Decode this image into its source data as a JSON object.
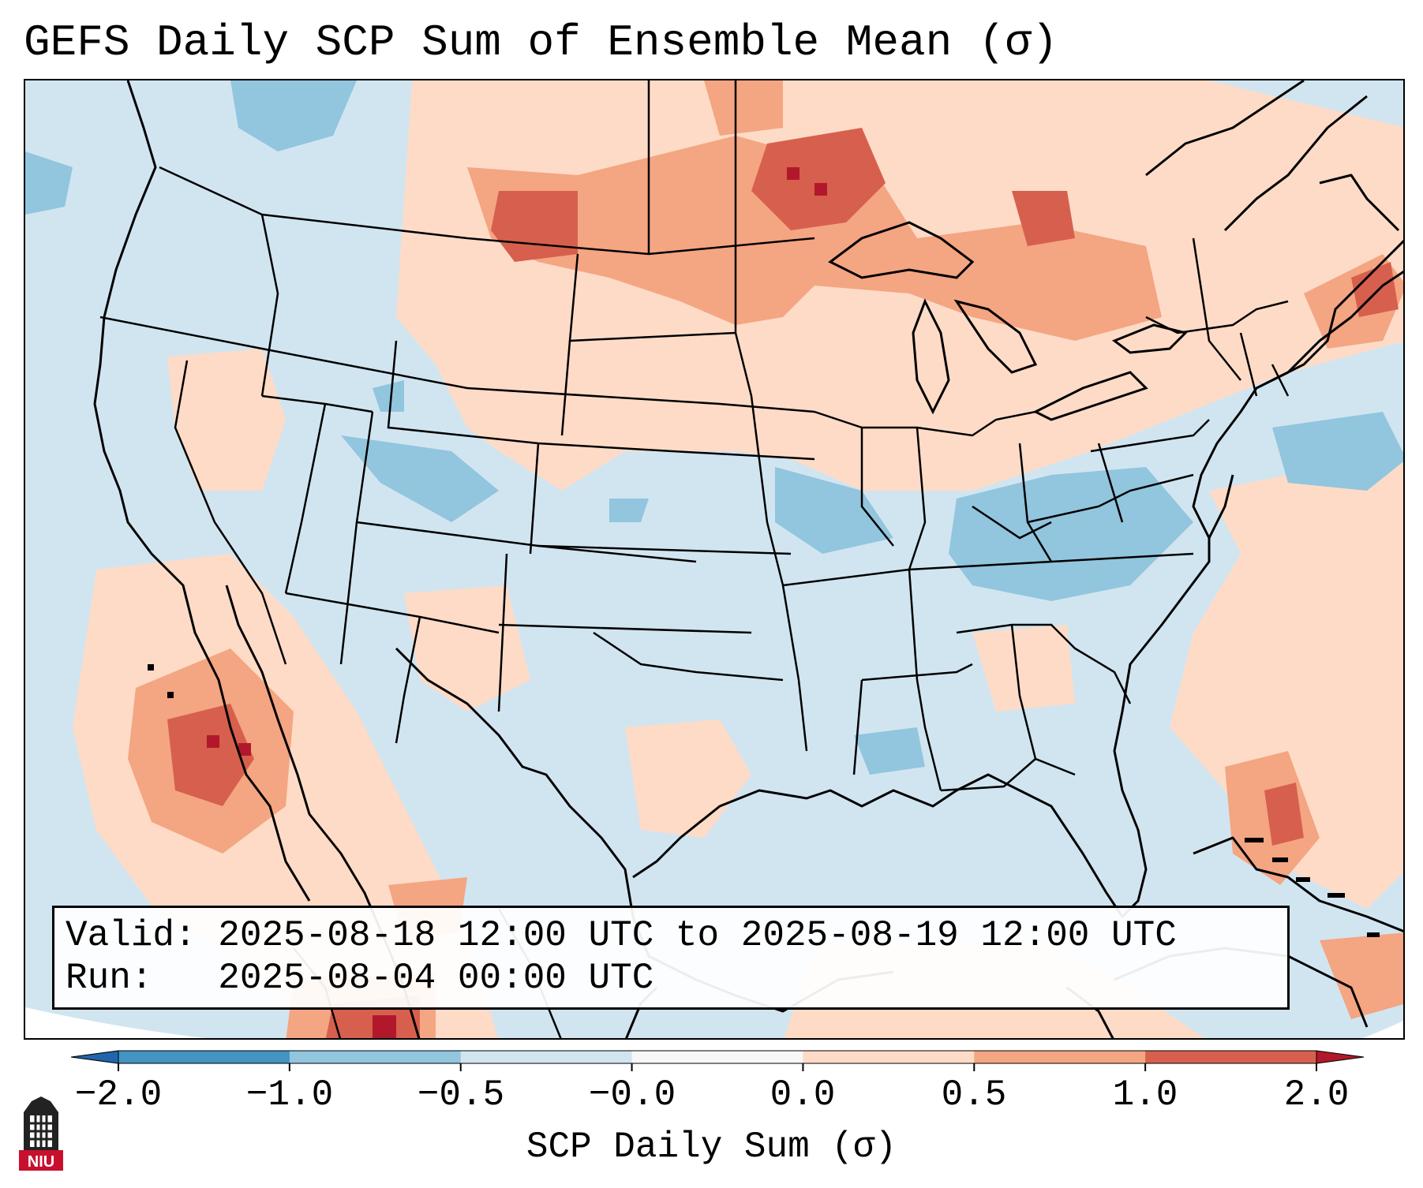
{
  "title": "GEFS Daily SCP Sum of Ensemble Mean (σ)",
  "info": {
    "valid_line": "Valid: 2025-08-18 12:00 UTC to 2025-08-19 12:00 UTC",
    "run_line": "Run:   2025-08-04 00:00 UTC"
  },
  "colorbar": {
    "label": "SCP Daily Sum (σ)",
    "ticks": [
      "−2.0",
      "−1.0",
      "−0.5",
      "−0.0",
      "0.0",
      "0.5",
      "1.0",
      "2.0"
    ],
    "colors": [
      "#2166ac",
      "#4393c3",
      "#92c5de",
      "#d1e5f0",
      "#f7f7f7",
      "#fddbc7",
      "#f4a582",
      "#d6604d",
      "#b2182b"
    ]
  },
  "logo": {
    "text": "NIU",
    "color": "#c8102e"
  },
  "map": {
    "ocean_color": "#d1e5f0",
    "outside_color": "#ffffff",
    "boundary_color": "#000000"
  }
}
